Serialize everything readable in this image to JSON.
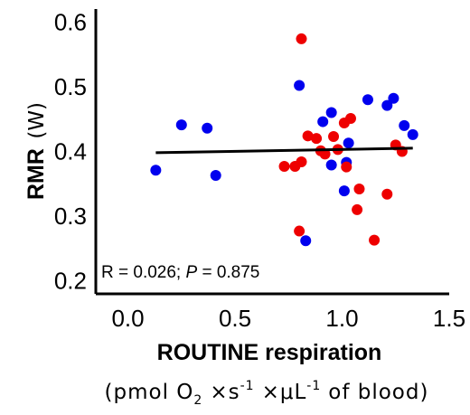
{
  "chart_data": {
    "type": "scatter",
    "xlabel": "ROUTINE respiration",
    "xunits": {
      "open": "(",
      "base": "pmol O",
      "sub": "2",
      "times1": "×s",
      "sup1": "-1",
      "times2": "×μL",
      "sup2": "-1",
      "rest": "of blood)"
    },
    "ylabel": "RMR",
    "yunit": "(W)",
    "xlim": [
      -0.15,
      1.5
    ],
    "ylim": [
      0.18,
      0.62
    ],
    "x_ticks": [
      0.0,
      0.5,
      1.0,
      1.5
    ],
    "x_tick_labels": [
      "0.0",
      "0.5",
      "1.0",
      "1.5"
    ],
    "y_ticks": [
      0.2,
      0.3,
      0.4,
      0.5,
      0.6
    ],
    "y_tick_labels": [
      "0.2",
      "0.3",
      "0.4",
      "0.5",
      "0.6"
    ],
    "annotation": {
      "r_text": "R = 0.026; ",
      "p_letter": "P",
      "p_text": " = 0.875"
    },
    "trendline": {
      "x": [
        0.13,
        1.33
      ],
      "y": [
        0.398,
        0.405
      ],
      "color": "#000000"
    },
    "series": [
      {
        "color": "#0000ee",
        "points": [
          [
            0.13,
            0.371
          ],
          [
            0.25,
            0.441
          ],
          [
            0.37,
            0.436
          ],
          [
            0.41,
            0.363
          ],
          [
            0.8,
            0.502
          ],
          [
            0.83,
            0.262
          ],
          [
            0.91,
            0.446
          ],
          [
            0.95,
            0.46
          ],
          [
            0.95,
            0.379
          ],
          [
            1.01,
            0.339
          ],
          [
            1.02,
            0.383
          ],
          [
            1.03,
            0.413
          ],
          [
            1.12,
            0.48
          ],
          [
            1.21,
            0.471
          ],
          [
            1.24,
            0.482
          ],
          [
            1.29,
            0.44
          ],
          [
            1.33,
            0.426
          ]
        ]
      },
      {
        "color": "#ee0000",
        "points": [
          [
            0.81,
            0.574
          ],
          [
            0.8,
            0.277
          ],
          [
            0.73,
            0.377
          ],
          [
            0.78,
            0.377
          ],
          [
            0.81,
            0.384
          ],
          [
            0.84,
            0.424
          ],
          [
            0.88,
            0.42
          ],
          [
            0.9,
            0.401
          ],
          [
            0.92,
            0.396
          ],
          [
            0.96,
            0.423
          ],
          [
            0.98,
            0.403
          ],
          [
            1.01,
            0.444
          ],
          [
            1.02,
            0.376
          ],
          [
            1.04,
            0.451
          ],
          [
            1.07,
            0.31
          ],
          [
            1.08,
            0.342
          ],
          [
            1.15,
            0.263
          ],
          [
            1.21,
            0.334
          ],
          [
            1.25,
            0.41
          ],
          [
            1.28,
            0.4
          ]
        ]
      }
    ]
  }
}
